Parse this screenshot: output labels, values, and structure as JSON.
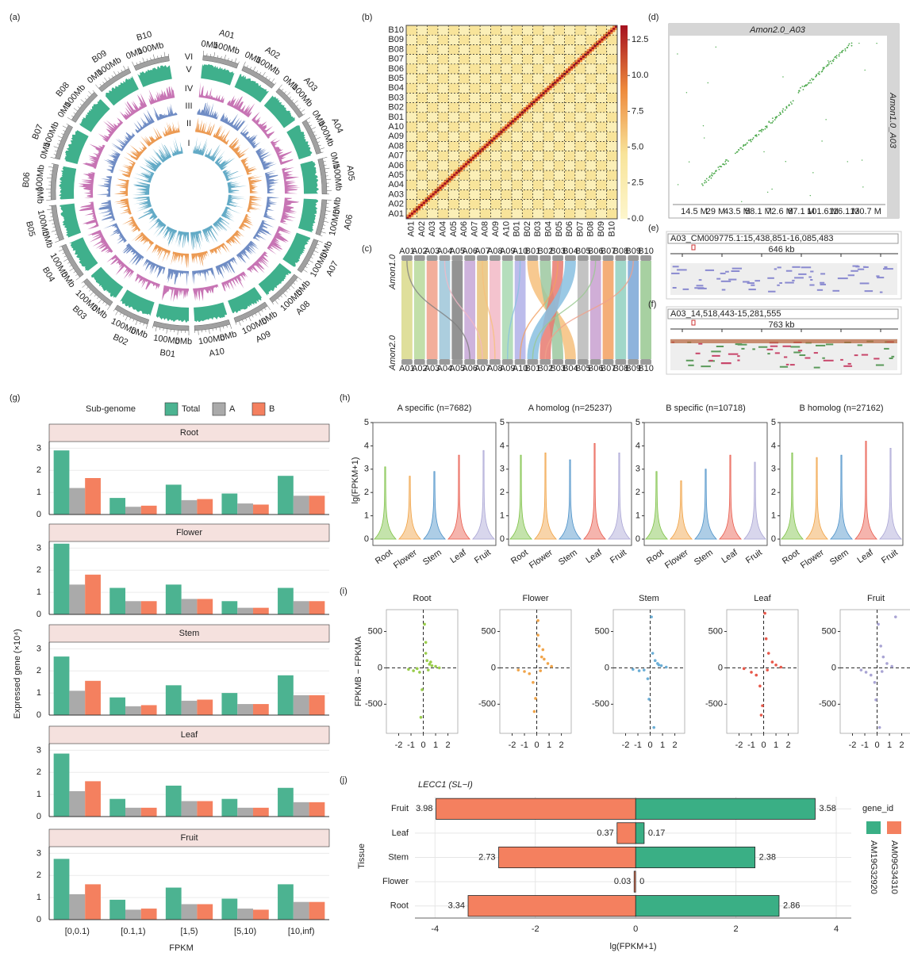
{
  "chart_data": [
    {
      "label": "(a)",
      "type": "circos",
      "chromosomes": [
        "A01",
        "A02",
        "A03",
        "A04",
        "A05",
        "A06",
        "A07",
        "A08",
        "A09",
        "A10",
        "B01",
        "B02",
        "B03",
        "B04",
        "B05",
        "B06",
        "B07",
        "B08",
        "B09",
        "B10"
      ],
      "ring_labels": [
        "VI",
        "V",
        "IV",
        "III",
        "II",
        "I"
      ],
      "tick_labels": [
        "0Mb",
        "100Mb"
      ],
      "ring_colors": [
        "#3fb08c",
        "#c774b4",
        "#6f8cc4",
        "#ec9a52",
        "#62aac6"
      ]
    },
    {
      "label": "(b)",
      "type": "heatmap",
      "categories": [
        "A01",
        "A02",
        "A03",
        "A04",
        "A05",
        "A06",
        "A07",
        "A08",
        "A09",
        "A10",
        "B01",
        "B02",
        "B03",
        "B04",
        "B05",
        "B06",
        "B07",
        "B08",
        "B09",
        "B10"
      ],
      "colorscale": [
        "#fdf6cc",
        "#f8e49a",
        "#ee8a3c",
        "#a5101f"
      ],
      "colorbar_lim": [
        0,
        13.5
      ],
      "colorbar_ticks": [
        {
          "value": 0,
          "label": "0.0"
        },
        2.5,
        {
          "value": 5,
          "label": "5.0"
        },
        7.5,
        {
          "value": 10,
          "label": "10.0"
        },
        12.5
      ]
    },
    {
      "label": "(c)",
      "type": "synteny",
      "genomes": [
        "Amon1.0",
        "Amon2.0"
      ],
      "chromosomes": [
        "A01",
        "A02",
        "A03",
        "A04",
        "A05",
        "A06",
        "A07",
        "A08",
        "A09",
        "A10",
        "B01",
        "B02",
        "B03",
        "B04",
        "B05",
        "B06",
        "B07",
        "B08",
        "B09",
        "B10"
      ],
      "ribbon_colors": [
        "#d9d98a",
        "#b7d99a",
        "#f0a08a",
        "#9ec6d8",
        "#808080",
        "#c6a6d6",
        "#e8c27a",
        "#f2b8c6",
        "#a8d8b0",
        "#b0b0e8",
        "#f6c07c",
        "#9cc8a0",
        "#e87a70",
        "#88c0e0",
        "#b8b8b8",
        "#c8a0d0",
        "#f2a060",
        "#90d0c0",
        "#7aa6d6",
        "#98c890"
      ]
    },
    {
      "label": "(d)",
      "type": "dotplot",
      "title": "Amon2.0_A03",
      "ylabel": "Amon1.0_A03",
      "color": "#4aa84a",
      "xtick_labels": [
        "14.5 M",
        "29 M",
        "43.5 M",
        "58.1 M",
        "72.6 M",
        "87.1 M",
        "101.6 M",
        "116.1 M",
        "130.7 M"
      ]
    },
    {
      "label": "(e)",
      "type": "browser",
      "title": "A03_CM009775.1:15,438,851-16,085,483",
      "span": "646 kb"
    },
    {
      "label": "(f)",
      "type": "browser",
      "title": "A03_14,518,443-15,281,555",
      "span": "763 kb"
    },
    {
      "label": "(g)",
      "type": "facet_bar",
      "legend_title": "Sub-genome",
      "ylabel": "Expressed gene (×10⁴)",
      "xlabel": "FPKM",
      "categories": [
        "[0,0.1)",
        "[0.1,1)",
        "[1,5)",
        "[5,10)",
        "[10,inf)"
      ],
      "series": [
        {
          "name": "Total",
          "color": "#4cb391"
        },
        {
          "name": "A",
          "color": "#aaaaaa"
        },
        {
          "name": "B",
          "color": "#f4805f"
        }
      ],
      "ylim": [
        0,
        3.3
      ],
      "yticks": [
        0,
        1,
        2,
        3
      ],
      "facets": [
        {
          "title": "Root",
          "values": [
            [
              2.9,
              0.75,
              1.35,
              0.95,
              1.75
            ],
            [
              1.2,
              0.35,
              0.65,
              0.5,
              0.85
            ],
            [
              1.65,
              0.4,
              0.7,
              0.45,
              0.85
            ]
          ]
        },
        {
          "title": "Flower",
          "values": [
            [
              3.2,
              1.2,
              1.35,
              0.6,
              1.2
            ],
            [
              1.35,
              0.6,
              0.7,
              0.3,
              0.6
            ],
            [
              1.8,
              0.6,
              0.7,
              0.3,
              0.6
            ]
          ]
        },
        {
          "title": "Stem",
          "values": [
            [
              2.65,
              0.8,
              1.35,
              1.0,
              1.8
            ],
            [
              1.1,
              0.4,
              0.65,
              0.5,
              0.9
            ],
            [
              1.55,
              0.45,
              0.7,
              0.5,
              0.9
            ]
          ]
        },
        {
          "title": "Leaf",
          "values": [
            [
              2.85,
              0.8,
              1.4,
              0.8,
              1.3
            ],
            [
              1.15,
              0.4,
              0.7,
              0.4,
              0.65
            ],
            [
              1.6,
              0.4,
              0.7,
              0.4,
              0.65
            ]
          ]
        },
        {
          "title": "Fruit",
          "values": [
            [
              2.75,
              0.9,
              1.45,
              0.95,
              1.6
            ],
            [
              1.15,
              0.45,
              0.7,
              0.5,
              0.8
            ],
            [
              1.6,
              0.5,
              0.7,
              0.45,
              0.8
            ]
          ]
        }
      ]
    },
    {
      "label": "(h)",
      "type": "violin",
      "ylabel": "lg(FPKM+1)",
      "categories": [
        "Root",
        "Flower",
        "Stem",
        "Leaf",
        "Fruit"
      ],
      "colors": [
        "#7cc144",
        "#f0a040",
        "#4a90c8",
        "#e8584a",
        "#a9a4d4"
      ],
      "ylim": [
        0,
        5
      ],
      "yticks": [
        0,
        1,
        2,
        3,
        4,
        5
      ],
      "panels": [
        {
          "title": "A specific (n=7682)",
          "max": [
            3.1,
            2.7,
            2.9,
            3.6,
            3.8
          ]
        },
        {
          "title": "A homolog (n=25237)",
          "max": [
            3.6,
            3.7,
            3.4,
            4.1,
            3.7
          ]
        },
        {
          "title": "B specific (n=10718)",
          "max": [
            2.9,
            2.5,
            3.0,
            3.6,
            3.3
          ]
        },
        {
          "title": "B homolog (n=27162)",
          "max": [
            3.7,
            3.5,
            3.6,
            4.2,
            3.9
          ]
        }
      ]
    },
    {
      "label": "(i)",
      "type": "scatter",
      "ylabel": "FPKMB − FPKMA",
      "xlim": [
        -3,
        2.8
      ],
      "xticks": [
        -2,
        -1,
        0,
        1,
        2
      ],
      "ylim": [
        -900,
        800
      ],
      "yticks": [
        -500,
        0,
        500
      ],
      "panels": [
        {
          "title": "Root",
          "color": "#9acd4c",
          "x": [
            -1.2,
            -0.8,
            -0.5,
            -0.3,
            -0.1,
            0.1,
            0.2,
            0.3,
            0.5,
            0.7,
            1.0,
            1.3,
            0.4,
            0.2,
            -0.2,
            0.6
          ],
          "y": [
            -20,
            -40,
            -10,
            -60,
            -300,
            600,
            200,
            100,
            50,
            30,
            20,
            0,
            -30,
            350,
            -680,
            80
          ]
        },
        {
          "title": "Flower",
          "color": "#f0a44a",
          "x": [
            -1.5,
            -1.0,
            -0.6,
            -0.3,
            -0.1,
            0.1,
            0.2,
            0.4,
            0.6,
            0.9,
            1.2,
            0.3,
            -0.2,
            0.5,
            0.1
          ],
          "y": [
            -30,
            -50,
            -80,
            -200,
            -420,
            650,
            300,
            150,
            120,
            60,
            20,
            -40,
            -600,
            250,
            450
          ]
        },
        {
          "title": "Stem",
          "color": "#6baed6",
          "x": [
            -1.4,
            -0.9,
            -0.5,
            -0.2,
            0.1,
            0.2,
            0.4,
            0.6,
            0.9,
            1.3,
            -0.1,
            0.3,
            0.7
          ],
          "y": [
            -20,
            -40,
            -30,
            -150,
            700,
            200,
            100,
            60,
            30,
            10,
            -430,
            -820,
            40
          ]
        },
        {
          "title": "Leaf",
          "color": "#e8584a",
          "x": [
            -1.6,
            -1.0,
            -0.6,
            -0.3,
            -0.1,
            0.1,
            0.2,
            0.4,
            0.7,
            1.0,
            1.4,
            0.3,
            -0.2
          ],
          "y": [
            -10,
            -60,
            -100,
            -250,
            -520,
            750,
            400,
            200,
            80,
            40,
            10,
            -30,
            -650
          ]
        },
        {
          "title": "Fruit",
          "color": "#a9a4d4",
          "x": [
            -1.3,
            -0.9,
            -0.5,
            -0.2,
            0.1,
            0.3,
            0.5,
            0.8,
            1.2,
            1.5,
            0.4,
            -0.1,
            0.2
          ],
          "y": [
            -30,
            -60,
            -100,
            -200,
            600,
            300,
            150,
            60,
            20,
            700,
            -50,
            -440,
            -820
          ]
        }
      ]
    },
    {
      "label": "(j)",
      "type": "diverging_bar",
      "title": "LECC1 (SL−I)",
      "ylabel": "Tissue",
      "xlabel": "lg(FPKM+1)",
      "legend_title": "gene_id",
      "categories": [
        "Fruit",
        "Leaf",
        "Stem",
        "Flower",
        "Root"
      ],
      "series": [
        {
          "name": "AM19G32920",
          "color": "#3aaf85",
          "values": [
            3.58,
            0.17,
            2.38,
            0,
            2.86
          ]
        },
        {
          "name": "AM09G34310",
          "color": "#f4805f",
          "values": [
            -3.98,
            -0.37,
            -2.73,
            -0.03,
            -3.34
          ],
          "value_labels": [
            "3.98",
            "0.37",
            "2.73",
            "0.03",
            "3.34"
          ]
        }
      ],
      "xlim": [
        -4.4,
        4.3
      ],
      "xticks": [
        -4,
        -2,
        0,
        2,
        4
      ],
      "grid": true
    }
  ]
}
